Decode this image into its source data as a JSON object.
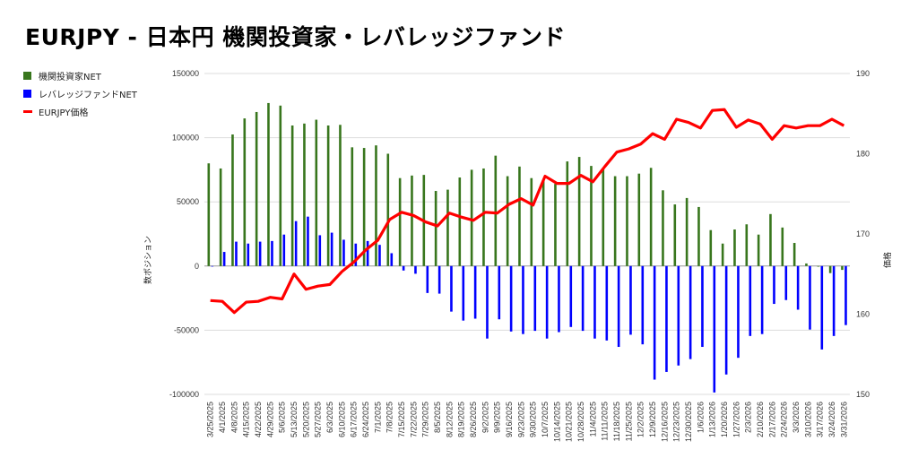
{
  "title": "EURJPY - 日本円 機関投資家・レバレッジファンド",
  "chart_data": {
    "type": "bar+line",
    "title": "EURJPY - 日本円 機関投資家・レバレッジファンド",
    "ylabel": "数ポジション",
    "y2label": "価格",
    "ylim": [
      -100000,
      150000
    ],
    "y2lim": [
      150,
      190
    ],
    "yticks": [
      150000,
      100000,
      50000,
      0,
      -50000,
      -100000
    ],
    "y2ticks": [
      190,
      180,
      170,
      160,
      150
    ],
    "grid": true,
    "legend_position": "left",
    "categories": [
      "3/25/2025",
      "4/1/2025",
      "4/8/2025",
      "4/15/2025",
      "4/22/2025",
      "4/29/2025",
      "5/6/2025",
      "5/13/2025",
      "5/20/2025",
      "5/27/2025",
      "6/3/2025",
      "6/10/2025",
      "6/17/2025",
      "6/24/2025",
      "7/1/2025",
      "7/8/2025",
      "7/15/2025",
      "7/22/2025",
      "7/29/2025",
      "8/5/2025",
      "8/12/2025",
      "8/19/2025",
      "8/26/2025",
      "9/2/2025",
      "9/9/2025",
      "9/16/2025",
      "9/23/2025",
      "9/30/2025",
      "10/7/2025",
      "10/14/2025",
      "10/21/2025",
      "10/28/2025",
      "11/4/2025",
      "11/11/2025",
      "11/18/2025",
      "11/25/2025",
      "12/2/2025",
      "12/9/2025",
      "12/16/2025",
      "12/23/2025",
      "12/30/2025",
      "1/6/2026",
      "1/13/2026",
      "1/20/2026",
      "1/27/2026",
      "2/3/2026",
      "2/10/2026",
      "2/17/2026",
      "2/24/2026",
      "3/3/2026",
      "3/10/2026",
      "3/17/2026",
      "3/24/2026",
      "3/31/2026"
    ],
    "series": [
      {
        "name": "機関投資家NET",
        "type": "bar",
        "axis": "left",
        "color": "#38761d",
        "values": [
          80000,
          76000,
          102500,
          115000,
          120000,
          127000,
          125000,
          109500,
          111000,
          114000,
          109500,
          110000,
          92500,
          92000,
          94000,
          87500,
          68500,
          70500,
          71000,
          58500,
          59500,
          69000,
          75000,
          76000,
          86000,
          70000,
          77500,
          68500,
          66500,
          64000,
          81500,
          85000,
          78000,
          76000,
          70000,
          70000,
          72000,
          76500,
          59000,
          48000,
          53000,
          46000,
          28000,
          17500,
          28500,
          32500,
          24500,
          40500,
          30000,
          18000,
          2000,
          -500,
          -5500,
          -3000
        ]
      },
      {
        "name": "レバレッジファンドNET",
        "type": "bar",
        "axis": "left",
        "color": "#0000ff",
        "values": [
          0,
          11000,
          19000,
          17500,
          19000,
          19500,
          24500,
          35000,
          38500,
          24000,
          26000,
          20500,
          17500,
          19500,
          16500,
          10000,
          -3500,
          -6000,
          -21000,
          -21500,
          -35500,
          -42500,
          -41000,
          -56500,
          -41500,
          -51000,
          -53000,
          -50500,
          -56500,
          -51500,
          -47500,
          -50500,
          -56500,
          -58000,
          -63000,
          -53500,
          -61000,
          -88500,
          -82500,
          -77500,
          -72500,
          -63000,
          -98500,
          -84500,
          -71500,
          -54500,
          -53000,
          -29500,
          -26500,
          -34000,
          -49500,
          -65000,
          -54500,
          -46000
        ]
      },
      {
        "name": "EURJPY価格",
        "type": "line",
        "axis": "right",
        "color": "#ff0000",
        "values": [
          161.7,
          161.6,
          160.2,
          161.5,
          161.6,
          162.1,
          161.9,
          165.0,
          163.1,
          163.5,
          163.7,
          165.3,
          166.5,
          168.0,
          169.2,
          171.8,
          172.7,
          172.3,
          171.5,
          171.0,
          172.6,
          172.1,
          171.7,
          172.7,
          172.6,
          173.7,
          174.4,
          173.6,
          177.2,
          176.3,
          176.3,
          177.3,
          176.5,
          178.4,
          180.2,
          180.6,
          181.2,
          182.5,
          181.8,
          184.3,
          183.9,
          183.2,
          185.4,
          185.5,
          183.3,
          184.2,
          183.7,
          181.8,
          183.5,
          183.2,
          183.5,
          183.5,
          184.3,
          183.5
        ]
      }
    ]
  }
}
